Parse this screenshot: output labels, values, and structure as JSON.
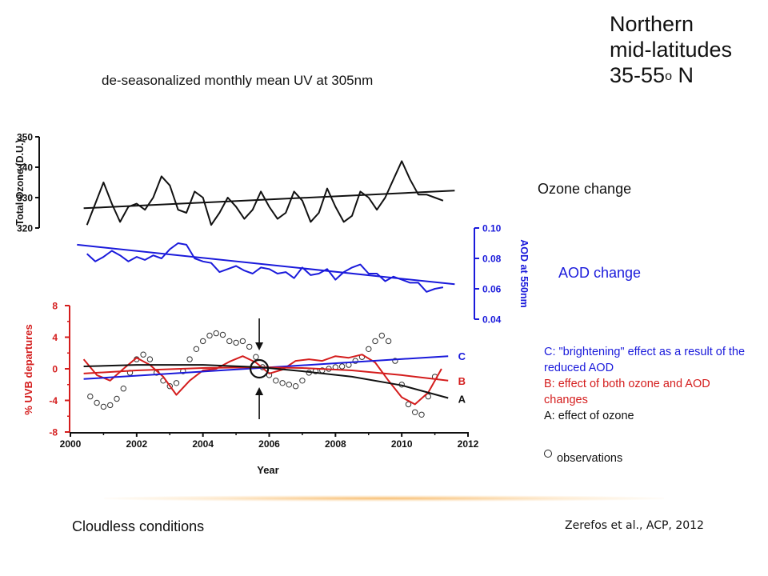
{
  "header": {
    "region_line1": "Northern",
    "region_line2": "mid-latitudes",
    "region_line3_prefix": "35-55",
    "region_line3_sup": "o",
    "region_line3_suffix": " N"
  },
  "subtitle": "de-seasonalized monthly mean UV at 305nm",
  "side_labels": {
    "ozone": "Ozone change",
    "aod": "AOD change"
  },
  "legend": {
    "c_line1": "C: \"brightening\" effect as a result of the",
    "c_line2": "reduced AOD",
    "b_line1": "B: effect of both ozone and AOD",
    "b_line2": "changes",
    "a": "A: effect of ozone",
    "observations": "observations"
  },
  "footer": {
    "left": "Cloudless conditions",
    "right": "Zerefos et al., ACP, 2012"
  },
  "colors": {
    "black": "#111111",
    "blue": "#1a1adb",
    "red": "#d41d1d",
    "glow": "#f5aa46"
  },
  "chart_data": [
    {
      "type": "line",
      "panel": "ozone",
      "ylabel": "Total Ozone (D.U.)",
      "ylim": [
        320,
        350
      ],
      "yticks": [
        "320",
        "330",
        "340",
        "350"
      ],
      "xlim": [
        2000,
        2012
      ],
      "series": [
        {
          "x": [
            2000.5,
            2000.75,
            2001.0,
            2001.25,
            2001.5,
            2001.75,
            2002.0,
            2002.25,
            2002.5,
            2002.75,
            2003.0,
            2003.25,
            2003.5,
            2003.75,
            2004.0,
            2004.25,
            2004.5,
            2004.75,
            2005.0,
            2005.25,
            2005.5,
            2005.75,
            2006.0,
            2006.25,
            2006.5,
            2006.75,
            2007.0,
            2007.25,
            2007.5,
            2007.75,
            2008.0,
            2008.25,
            2008.5,
            2008.75,
            2009.0,
            2009.25,
            2009.5,
            2009.75,
            2010.0,
            2010.25,
            2010.5,
            2010.75,
            2011.0,
            2011.25
          ],
          "values": [
            321,
            328,
            335,
            328,
            322,
            327,
            328,
            326,
            330,
            337,
            334,
            326,
            325,
            332,
            330,
            321,
            325,
            330,
            327,
            323,
            326,
            332,
            327,
            323,
            325,
            332,
            329,
            322,
            325,
            333,
            327,
            322,
            324,
            332,
            330,
            326,
            330,
            336,
            342,
            336,
            331,
            331,
            330,
            329
          ]
        },
        {
          "name": "Ozone trend",
          "x": [
            2000.4,
            2011.6
          ],
          "values": [
            326.5,
            332.3
          ]
        }
      ]
    },
    {
      "type": "line",
      "panel": "aod",
      "ylabel": "AOD at 550nm",
      "ylim": [
        0.04,
        0.1
      ],
      "yticks": [
        "0.04",
        "0.06",
        "0.08",
        "0.10"
      ],
      "xlim": [
        2000,
        2012
      ],
      "series": [
        {
          "x": [
            2000.5,
            2000.75,
            2001.0,
            2001.25,
            2001.5,
            2001.75,
            2002.0,
            2002.25,
            2002.5,
            2002.75,
            2003.0,
            2003.25,
            2003.5,
            2003.75,
            2004.0,
            2004.25,
            2004.5,
            2004.75,
            2005.0,
            2005.25,
            2005.5,
            2005.75,
            2006.0,
            2006.25,
            2006.5,
            2006.75,
            2007.0,
            2007.25,
            2007.5,
            2007.75,
            2008.0,
            2008.25,
            2008.5,
            2008.75,
            2009.0,
            2009.25,
            2009.5,
            2009.75,
            2010.0,
            2010.25,
            2010.5,
            2010.75,
            2011.0,
            2011.25
          ],
          "values": [
            0.083,
            0.078,
            0.081,
            0.085,
            0.082,
            0.078,
            0.081,
            0.079,
            0.082,
            0.08,
            0.086,
            0.09,
            0.089,
            0.08,
            0.078,
            0.077,
            0.071,
            0.073,
            0.075,
            0.072,
            0.07,
            0.074,
            0.073,
            0.07,
            0.071,
            0.067,
            0.074,
            0.069,
            0.07,
            0.073,
            0.066,
            0.071,
            0.074,
            0.076,
            0.07,
            0.07,
            0.065,
            0.068,
            0.066,
            0.064,
            0.064,
            0.058,
            0.06,
            0.061
          ]
        },
        {
          "name": "AOD trend",
          "x": [
            2000.2,
            2011.6
          ],
          "values": [
            0.089,
            0.063
          ]
        }
      ]
    },
    {
      "type": "line",
      "panel": "uvb",
      "title": "",
      "xlabel": "Year",
      "ylabel": "% UVB departures",
      "xlim": [
        2000,
        2012
      ],
      "ylim": [
        -8,
        8
      ],
      "xticks": [
        "2000",
        "2002",
        "2004",
        "2006",
        "2008",
        "2010",
        "2012"
      ],
      "yticks": [
        "-8",
        "-4",
        "0",
        "4",
        "8"
      ],
      "curve_labels": [
        "A",
        "B",
        "C"
      ],
      "series": [
        {
          "name": "A",
          "x": [
            2000.4,
            2002.0,
            2004.0,
            2005.7,
            2007.0,
            2008.5,
            2010.0,
            2011.4
          ],
          "values": [
            0.3,
            0.5,
            0.5,
            0.2,
            -0.3,
            -1.0,
            -2.1,
            -3.7
          ]
        },
        {
          "name": "B",
          "x": [
            2000.4,
            2002.0,
            2004.0,
            2005.7,
            2007.0,
            2008.5,
            2010.0,
            2011.4
          ],
          "values": [
            -0.6,
            -0.2,
            0.1,
            0.2,
            0.1,
            -0.2,
            -0.8,
            -1.5
          ]
        },
        {
          "name": "C",
          "x": [
            2000.4,
            2011.4
          ],
          "values": [
            -1.3,
            1.6
          ]
        },
        {
          "name": "departures",
          "x": [
            2000.4,
            2000.8,
            2001.2,
            2001.6,
            2002.0,
            2002.4,
            2002.8,
            2003.2,
            2003.6,
            2004.0,
            2004.4,
            2004.8,
            2005.2,
            2005.6,
            2006.0,
            2006.4,
            2006.8,
            2007.2,
            2007.6,
            2008.0,
            2008.4,
            2008.8,
            2009.2,
            2009.6,
            2010.0,
            2010.4,
            2010.8,
            2011.2
          ],
          "values": [
            1.2,
            -0.8,
            -1.5,
            0.0,
            1.4,
            0.5,
            -1.0,
            -3.3,
            -1.5,
            -0.2,
            0.0,
            0.9,
            1.6,
            0.8,
            -0.6,
            -0.1,
            1.0,
            1.2,
            1.0,
            1.6,
            1.4,
            1.8,
            0.8,
            -1.5,
            -3.6,
            -4.5,
            -3.0,
            0.0
          ]
        },
        {
          "name": "observations",
          "marker": "circle",
          "x": [
            2000.6,
            2000.8,
            2001.0,
            2001.2,
            2001.4,
            2001.6,
            2001.8,
            2002.0,
            2002.2,
            2002.4,
            2002.6,
            2002.8,
            2003.0,
            2003.2,
            2003.4,
            2003.6,
            2003.8,
            2004.0,
            2004.2,
            2004.4,
            2004.6,
            2004.8,
            2005.0,
            2005.2,
            2005.4,
            2005.6,
            2005.8,
            2006.0,
            2006.2,
            2006.4,
            2006.6,
            2006.8,
            2007.0,
            2007.2,
            2007.4,
            2007.6,
            2007.8,
            2008.0,
            2008.2,
            2008.4,
            2008.6,
            2008.8,
            2009.0,
            2009.2,
            2009.4,
            2009.6,
            2009.8,
            2010.0,
            2010.2,
            2010.4,
            2010.6,
            2010.8,
            2011.0
          ],
          "values": [
            -3.5,
            -4.3,
            -4.8,
            -4.6,
            -3.8,
            -2.5,
            -0.5,
            1.2,
            1.8,
            1.2,
            -0.5,
            -1.5,
            -2.2,
            -1.8,
            -0.3,
            1.2,
            2.5,
            3.5,
            4.2,
            4.5,
            4.3,
            3.5,
            3.3,
            3.5,
            2.8,
            1.5,
            0.2,
            -0.8,
            -1.5,
            -1.8,
            -2.0,
            -2.2,
            -1.5,
            -0.5,
            -0.3,
            -0.2,
            0.0,
            0.2,
            0.3,
            0.5,
            1.0,
            1.5,
            2.5,
            3.5,
            4.2,
            3.5,
            1.0,
            -2.0,
            -4.5,
            -5.5,
            -5.8,
            -3.5,
            -1.0
          ]
        }
      ],
      "annotations": [
        "down-arrow at 2005.7",
        "up-arrow at 2005.7",
        "circle marker at 2005.7, 0"
      ]
    }
  ]
}
